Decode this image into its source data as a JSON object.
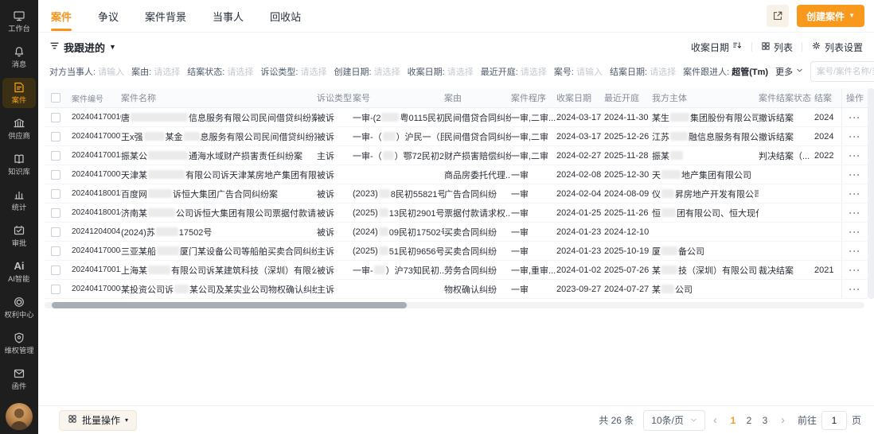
{
  "colors": {
    "accent": "#f8981d",
    "sidebar_bg": "#1e1e1e",
    "active_item_bg": "#3c3014"
  },
  "sidebar": {
    "ai_glyph": "Ai",
    "items": [
      {
        "name": "workbench",
        "label": "工作台",
        "icon": "workbench-icon",
        "active": false
      },
      {
        "name": "messages",
        "label": "消息",
        "icon": "bell-icon",
        "active": false
      },
      {
        "name": "cases",
        "label": "案件",
        "icon": "case-icon",
        "active": true
      },
      {
        "name": "suppliers",
        "label": "供应商",
        "icon": "supplier-icon",
        "active": false
      },
      {
        "name": "knowledge-base",
        "label": "知识库",
        "icon": "knowledge-icon",
        "active": false
      },
      {
        "name": "statistics",
        "label": "统计",
        "icon": "stats-icon",
        "active": false
      },
      {
        "name": "approval",
        "label": "审批",
        "icon": "approval-icon",
        "active": false
      },
      {
        "name": "ai",
        "label": "AI智能",
        "icon": "ai-icon",
        "active": false
      },
      {
        "name": "rights-center",
        "label": "权利中心",
        "icon": "rights-icon",
        "active": false
      },
      {
        "name": "rights-protection",
        "label": "维权管理",
        "icon": "shield-icon",
        "active": false
      },
      {
        "name": "letters",
        "label": "函件",
        "icon": "letter-icon",
        "active": false
      },
      {
        "name": "archive",
        "label": "",
        "icon": "archive-icon",
        "active": false
      }
    ]
  },
  "tabs": {
    "items": [
      {
        "name": "case",
        "label": "案件",
        "active": true
      },
      {
        "name": "dispute",
        "label": "争议",
        "active": false
      },
      {
        "name": "case-background",
        "label": "案件背景",
        "active": false
      },
      {
        "name": "parties",
        "label": "当事人",
        "active": false
      },
      {
        "name": "recycle-bin",
        "label": "回收站",
        "active": false
      }
    ]
  },
  "header_actions": {
    "create_label": "创建案件",
    "create_caret": "▼"
  },
  "toolbar": {
    "filter_preset": "我跟进的",
    "preset_caret": "▼",
    "sort_field": "收案日期",
    "view_label": "列表",
    "settings_label": "列表设置",
    "more_label": "更多"
  },
  "filters": [
    {
      "name": "opposing-party",
      "label": "对方当事人:",
      "value": "请输入",
      "placeholder": true
    },
    {
      "name": "cause",
      "label": "案由:",
      "value": "请选择",
      "placeholder": true
    },
    {
      "name": "close-status",
      "label": "结案状态:",
      "value": "请选择",
      "placeholder": true
    },
    {
      "name": "litigation-type",
      "label": "诉讼类型:",
      "value": "请选择",
      "placeholder": true
    },
    {
      "name": "create-date",
      "label": "创建日期:",
      "value": "请选择",
      "placeholder": true
    },
    {
      "name": "accept-date",
      "label": "收案日期:",
      "value": "请选择",
      "placeholder": true
    },
    {
      "name": "recent-hearing",
      "label": "最近开庭:",
      "value": "请选择",
      "placeholder": true
    },
    {
      "name": "case-number",
      "label": "案号:",
      "value": "请输入",
      "placeholder": true
    },
    {
      "name": "close-date",
      "label": "结案日期:",
      "value": "请选择",
      "placeholder": true
    },
    {
      "name": "follower",
      "label": "案件跟进人:",
      "value": "超管(Tm)",
      "placeholder": false
    }
  ],
  "search": {
    "placeholder": "案号/案件名称/当事人"
  },
  "table": {
    "action_label": "···",
    "columns": [
      {
        "key": "sel",
        "label": ""
      },
      {
        "key": "no",
        "label": "案件编号"
      },
      {
        "key": "name",
        "label": "案件名称"
      },
      {
        "key": "type",
        "label": "诉讼类型"
      },
      {
        "key": "num",
        "label": "案号"
      },
      {
        "key": "cause",
        "label": "案由"
      },
      {
        "key": "proc",
        "label": "案件程序"
      },
      {
        "key": "d1",
        "label": "收案日期"
      },
      {
        "key": "d2",
        "label": "最近开庭"
      },
      {
        "key": "party",
        "label": "我方主体"
      },
      {
        "key": "status",
        "label": "案件结案状态"
      },
      {
        "key": "close",
        "label": "结案"
      },
      {
        "key": "act",
        "label": "操作"
      }
    ],
    "rows": [
      {
        "no": "202404170010",
        "name": [
          {
            "t": "唐"
          },
          {
            "r": 72
          },
          {
            "t": "信息服务有限公司民间借贷纠纷案"
          }
        ],
        "type": "被诉",
        "num": [
          {
            "t": "一审-(2"
          },
          {
            "r": 22
          },
          {
            "t": "粤0115民初10..."
          }
        ],
        "cause": "民间借贷合同纠纷",
        "proc": "一审,二审...",
        "d1": "2024-03-17",
        "d2": "2024-11-30",
        "party": [
          {
            "t": "某生"
          },
          {
            "r": 24
          },
          {
            "t": "集团股份有限公司东莞分公司"
          }
        ],
        "status": "撤诉结案",
        "close": "2024"
      },
      {
        "no": "202404170007",
        "name": [
          {
            "t": "王x强"
          },
          {
            "r": 26
          },
          {
            "t": "某金"
          },
          {
            "r": 20
          },
          {
            "t": "息服务有限公司民间借贷纠纷案"
          }
        ],
        "type": "被诉",
        "num": [
          {
            "t": "一审-（"
          },
          {
            "r": 16
          },
          {
            "t": "）沪民一（民..."
          }
        ],
        "cause": "民间借贷合同纠纷",
        "proc": "一审,二审",
        "d1": "2024-03-17",
        "d2": "2025-12-26",
        "party": [
          {
            "t": "江苏"
          },
          {
            "r": 22
          },
          {
            "t": "融信息服务有限公司"
          }
        ],
        "status": "撤诉结案",
        "close": "2024"
      },
      {
        "no": "202404170013",
        "name": [
          {
            "t": "振某公"
          },
          {
            "r": 50
          },
          {
            "t": "通海水域财产损害责任纠纷案"
          }
        ],
        "type": "主诉",
        "num": [
          {
            "t": "一审-（"
          },
          {
            "r": 14
          },
          {
            "t": "）鄂72民初2..."
          }
        ],
        "cause": "财产损害赔偿纠纷",
        "proc": "一审,二审",
        "d1": "2024-02-27",
        "d2": "2025-11-28",
        "party": [
          {
            "t": "振某"
          },
          {
            "r": 16
          }
        ],
        "status": "判决结案（...",
        "close": "2022"
      },
      {
        "no": "202404170005",
        "name": [
          {
            "t": "天津某"
          },
          {
            "r": 46
          },
          {
            "t": "有限公司诉天津某房地产集团有限公司商品..."
          }
        ],
        "type": "被诉",
        "num": [],
        "cause": "商品房委托代理...",
        "proc": "一审",
        "d1": "2024-02-08",
        "d2": "2025-12-30",
        "party": [
          {
            "t": "天"
          },
          {
            "r": 24
          },
          {
            "t": "地产集团有限公司"
          }
        ],
        "status": "",
        "close": ""
      },
      {
        "no": "202404180015",
        "name": [
          {
            "t": "百度网"
          },
          {
            "r": 30
          },
          {
            "t": "诉恒大集团广告合同纠纷案"
          }
        ],
        "type": "被诉",
        "num": [
          {
            "t": "(2023)"
          },
          {
            "r": 14
          },
          {
            "t": "8民初55821号"
          }
        ],
        "cause": "广告合同纠纷",
        "proc": "一审",
        "d1": "2024-02-04",
        "d2": "2024-08-09",
        "party": [
          {
            "t": "仪"
          },
          {
            "r": 16
          },
          {
            "t": "昇房地产开发有限公司、恒大..."
          }
        ],
        "status": "",
        "close": ""
      },
      {
        "no": "202404180014",
        "name": [
          {
            "t": "济南某"
          },
          {
            "r": 34
          },
          {
            "t": "公司诉恒大集团有限公司票据付款请求权纠..."
          }
        ],
        "type": "被诉",
        "num": [
          {
            "t": "(2025)"
          },
          {
            "r": 12
          },
          {
            "t": "13民初2901号"
          }
        ],
        "cause": "票据付款请求权...",
        "proc": "一审",
        "d1": "2024-01-25",
        "d2": "2025-11-26",
        "party": [
          {
            "t": "恒"
          },
          {
            "r": 18
          },
          {
            "t": "团有限公司、恒大现代农业集团..."
          }
        ],
        "status": "",
        "close": ""
      },
      {
        "no": "202412040041",
        "name": [
          {
            "t": "(2024)苏"
          },
          {
            "r": 28
          },
          {
            "t": "17502号"
          }
        ],
        "type": "被诉",
        "num": [
          {
            "t": "(2024)"
          },
          {
            "r": 12
          },
          {
            "t": "09民初17502号"
          }
        ],
        "cause": "买卖合同纠纷",
        "proc": "一审",
        "d1": "2024-01-23",
        "d2": "2024-12-10",
        "party": [],
        "status": "",
        "close": ""
      },
      {
        "no": "202404170004",
        "name": [
          {
            "t": "三亚某船"
          },
          {
            "r": 28
          },
          {
            "t": "厦门某设备公司等船舶买卖合同纠纷案"
          }
        ],
        "type": "主诉",
        "num": [
          {
            "t": "(2025)"
          },
          {
            "r": 12
          },
          {
            "t": "51民初9656号"
          }
        ],
        "cause": "买卖合同纠纷",
        "proc": "一审",
        "d1": "2024-01-23",
        "d2": "2025-10-19",
        "party": [
          {
            "t": "厦"
          },
          {
            "r": 20
          },
          {
            "t": "备公司"
          }
        ],
        "status": "",
        "close": ""
      },
      {
        "no": "202404170012",
        "name": [
          {
            "t": "上海某"
          },
          {
            "r": 28
          },
          {
            "t": "有限公司诉某建筑科技（深圳）有限公司劳务..."
          }
        ],
        "type": "被诉",
        "num": [
          {
            "t": "一审-"
          },
          {
            "r": 14
          },
          {
            "t": "）沪73知民初..."
          }
        ],
        "cause": "劳务合同纠纷",
        "proc": "一审,重审...",
        "d1": "2024-01-02",
        "d2": "2025-07-26",
        "party": [
          {
            "t": "某"
          },
          {
            "r": 20
          },
          {
            "t": "技（深圳）有限公司"
          }
        ],
        "status": "裁决结案",
        "close": "2021"
      },
      {
        "no": "202404170008",
        "name": [
          {
            "t": "某投资公司诉"
          },
          {
            "r": 18
          },
          {
            "t": "某公司及某实业公司物权确认纠纷案"
          }
        ],
        "type": "主诉",
        "num": [],
        "cause": "物权确认纠纷",
        "proc": "一审",
        "d1": "2023-09-27",
        "d2": "2024-07-27",
        "party": [
          {
            "t": "某"
          },
          {
            "r": 16
          },
          {
            "t": "公司"
          }
        ],
        "status": "",
        "close": ""
      }
    ]
  },
  "footer": {
    "batch_label": "批量操作",
    "batch_caret": "▾",
    "total": "共 26 条",
    "page_size": "10条/页",
    "prev": "‹",
    "next": "›",
    "pages": [
      "1",
      "2",
      "3"
    ],
    "current_page": "1",
    "goto_label": "前往",
    "goto_value": "1",
    "goto_suffix": "页"
  }
}
